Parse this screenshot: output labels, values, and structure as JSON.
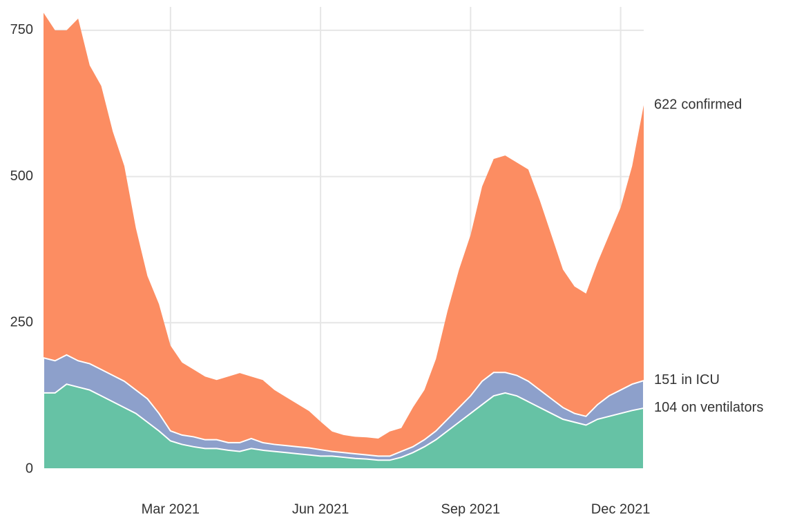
{
  "chart_data": {
    "type": "area",
    "categories": [
      null,
      null,
      null,
      null,
      null,
      null,
      null,
      null,
      null,
      null,
      null,
      "Mar 2021",
      null,
      null,
      null,
      null,
      null,
      null,
      null,
      null,
      null,
      null,
      null,
      null,
      "Jun 2021",
      null,
      null,
      null,
      null,
      null,
      null,
      null,
      null,
      null,
      null,
      null,
      null,
      "Sep 2021",
      null,
      null,
      null,
      null,
      null,
      null,
      null,
      null,
      null,
      null,
      null,
      null,
      "Dec 2021",
      null,
      null
    ],
    "series": [
      {
        "name": "confirmed",
        "color": "#fc8d62",
        "values": [
          780,
          750,
          750,
          770,
          690,
          655,
          577,
          518,
          412,
          330,
          282,
          211,
          182,
          170,
          158,
          152,
          158,
          164,
          158,
          152,
          135,
          123,
          111,
          99,
          81,
          64,
          58,
          55,
          54,
          52,
          64,
          70,
          105,
          135,
          188,
          270,
          341,
          400,
          483,
          530,
          536,
          524,
          512,
          459,
          400,
          341,
          312,
          300,
          353,
          400,
          447,
          518,
          622
        ]
      },
      {
        "name": "in ICU",
        "color": "#8da0cb",
        "values": [
          190,
          185,
          195,
          185,
          180,
          170,
          160,
          150,
          135,
          120,
          95,
          65,
          58,
          55,
          50,
          50,
          45,
          45,
          52,
          45,
          42,
          40,
          38,
          36,
          33,
          30,
          28,
          26,
          24,
          22,
          22,
          30,
          38,
          50,
          65,
          85,
          105,
          125,
          150,
          165,
          165,
          160,
          150,
          135,
          120,
          105,
          95,
          90,
          110,
          125,
          135,
          145,
          151
        ]
      },
      {
        "name": "on ventilators",
        "color": "#66c2a5",
        "values": [
          130,
          130,
          145,
          140,
          135,
          125,
          115,
          105,
          95,
          80,
          65,
          48,
          42,
          38,
          35,
          35,
          32,
          30,
          35,
          32,
          30,
          28,
          26,
          24,
          22,
          22,
          20,
          18,
          17,
          15,
          15,
          20,
          28,
          38,
          50,
          65,
          80,
          95,
          110,
          125,
          130,
          125,
          115,
          105,
          95,
          85,
          80,
          75,
          85,
          90,
          95,
          100,
          104
        ]
      }
    ],
    "ylim": [
      0,
      790
    ],
    "yticks": [
      0,
      250,
      500,
      750
    ],
    "grid": true
  }
}
